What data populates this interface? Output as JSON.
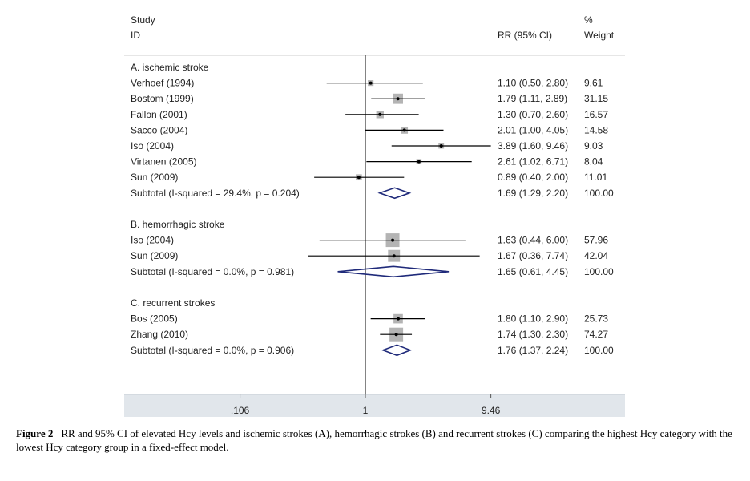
{
  "chart_data": {
    "type": "forest",
    "header": {
      "study_line1": "Study",
      "study_line2": "ID",
      "rr_label": "RR (95% CI)",
      "weight_line1": "%",
      "weight_line2": "Weight"
    },
    "x_axis": {
      "scale": "log",
      "range": [
        0.106,
        9.46
      ],
      "ticks": [
        {
          "value": 0.106,
          "label": ".106"
        },
        {
          "value": 1,
          "label": "1"
        },
        {
          "value": 9.46,
          "label": "9.46"
        }
      ],
      "reference_line": 1
    },
    "groups": [
      {
        "label": "A. ischemic stroke",
        "studies": [
          {
            "name": "Verhoef  (1994)",
            "rr": 1.1,
            "lo": 0.5,
            "hi": 2.8,
            "ci_text": "1.10 (0.50, 2.80)",
            "weight": "9.61"
          },
          {
            "name": "Bostom (1999)",
            "rr": 1.79,
            "lo": 1.11,
            "hi": 2.89,
            "ci_text": "1.79 (1.11, 2.89)",
            "weight": "31.15"
          },
          {
            "name": "Fallon (2001)",
            "rr": 1.3,
            "lo": 0.7,
            "hi": 2.6,
            "ci_text": "1.30 (0.70, 2.60)",
            "weight": "16.57"
          },
          {
            "name": "Sacco (2004)",
            "rr": 2.01,
            "lo": 1.0,
            "hi": 4.05,
            "ci_text": "2.01 (1.00, 4.05)",
            "weight": "14.58"
          },
          {
            "name": "Iso (2004)",
            "rr": 3.89,
            "lo": 1.6,
            "hi": 9.46,
            "ci_text": "3.89 (1.60, 9.46)",
            "weight": "9.03"
          },
          {
            "name": "Virtanen (2005)",
            "rr": 2.61,
            "lo": 1.02,
            "hi": 6.71,
            "ci_text": "2.61 (1.02, 6.71)",
            "weight": "8.04"
          },
          {
            "name": "Sun (2009)",
            "rr": 0.89,
            "lo": 0.4,
            "hi": 2.0,
            "ci_text": "0.89 (0.40, 2.00)",
            "weight": "11.01"
          }
        ],
        "subtotal": {
          "label": "Subtotal  (I-squared = 29.4%, p = 0.204)",
          "rr": 1.69,
          "lo": 1.29,
          "hi": 2.2,
          "ci_text": "1.69 (1.29, 2.20)",
          "weight": "100.00"
        }
      },
      {
        "label": "B. hemorrhagic stroke",
        "studies": [
          {
            "name": "Iso (2004)",
            "rr": 1.63,
            "lo": 0.44,
            "hi": 6.0,
            "ci_text": "1.63 (0.44, 6.00)",
            "weight": "57.96"
          },
          {
            "name": "Sun (2009)",
            "rr": 1.67,
            "lo": 0.36,
            "hi": 7.74,
            "ci_text": "1.67 (0.36, 7.74)",
            "weight": "42.04"
          }
        ],
        "subtotal": {
          "label": "Subtotal  (I-squared = 0.0%, p = 0.981)",
          "rr": 1.65,
          "lo": 0.61,
          "hi": 4.45,
          "ci_text": "1.65 (0.61, 4.45)",
          "weight": "100.00"
        }
      },
      {
        "label": "C. recurrent strokes",
        "studies": [
          {
            "name": "Bos (2005)",
            "rr": 1.8,
            "lo": 1.1,
            "hi": 2.9,
            "ci_text": "1.80 (1.10, 2.90)",
            "weight": "25.73"
          },
          {
            "name": "Zhang (2010)",
            "rr": 1.74,
            "lo": 1.3,
            "hi": 2.3,
            "ci_text": "1.74 (1.30, 2.30)",
            "weight": "74.27"
          }
        ],
        "subtotal": {
          "label": "Subtotal  (I-squared = 0.0%, p = 0.906)",
          "rr": 1.76,
          "lo": 1.37,
          "hi": 2.24,
          "ci_text": "1.76 (1.37, 2.24)",
          "weight": "100.00"
        }
      }
    ]
  },
  "caption": {
    "label": "Figure 2",
    "text": "RR and 95% CI of elevated Hcy levels and ischemic strokes (A), hemorrhagic strokes (B) and recurrent strokes (C) comparing the highest Hcy category with the lowest Hcy category group in a fixed-effect model."
  },
  "colors": {
    "axis_band": "#e1e6eb",
    "diamond": "#1f2a7a",
    "weight_box": "#b4b4b4",
    "text": "#222222"
  }
}
